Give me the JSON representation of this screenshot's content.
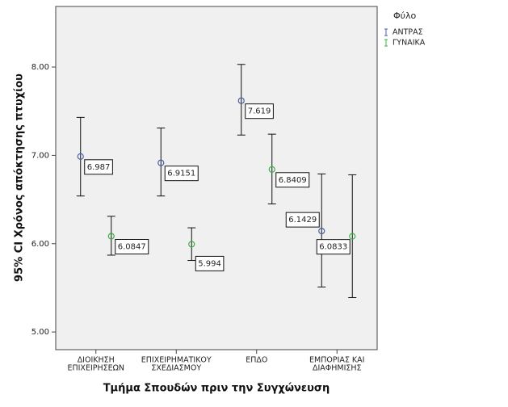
{
  "chart_data": {
    "type": "errorbar",
    "x_label": "Τμήμα Σπουδών πριν την Συγχώνευση",
    "y_label": "95% CI Χρόνος απόκτησης πτυχίου",
    "categories": [
      [
        "ΔΙΟΙΚΗΣΗ",
        "ΕΠΙΧΕΙΡΗΣΕΩΝ"
      ],
      [
        "ΕΠΙΧΕΙΡΗΜΑΤΙΚΟΥ",
        "ΣΧΕΔΙΑΣΜΟΥ"
      ],
      [
        "ΕΠΔΟ"
      ],
      [
        "ΕΜΠΟΡΙΑΣ ΚΑΙ",
        "ΔΙΑΦΗΜΙΣΗΣ"
      ]
    ],
    "legend_title": "Φύλο",
    "series": [
      {
        "name": "ΑΝΤΡΑΣ",
        "color": "#4a5fa8",
        "values": [
          6.987,
          6.9151,
          7.619,
          6.1429
        ],
        "lower": [
          6.54,
          6.54,
          7.23,
          5.51
        ],
        "upper": [
          7.43,
          7.31,
          8.03,
          6.79
        ]
      },
      {
        "name": "ΓΥΝΑΙΚΑ",
        "color": "#3cb043",
        "values": [
          6.0847,
          5.994,
          6.8409,
          6.0833
        ],
        "lower": [
          5.87,
          5.81,
          6.45,
          5.39
        ],
        "upper": [
          6.31,
          6.18,
          7.24,
          6.78
        ]
      }
    ],
    "ylim": [
      4.8,
      8.686
    ],
    "yticks": [
      {
        "value": 5,
        "label": "5.00"
      },
      {
        "value": 6,
        "label": "6.00"
      },
      {
        "value": 7,
        "label": "7.00"
      },
      {
        "value": 8,
        "label": "8.00"
      }
    ]
  }
}
